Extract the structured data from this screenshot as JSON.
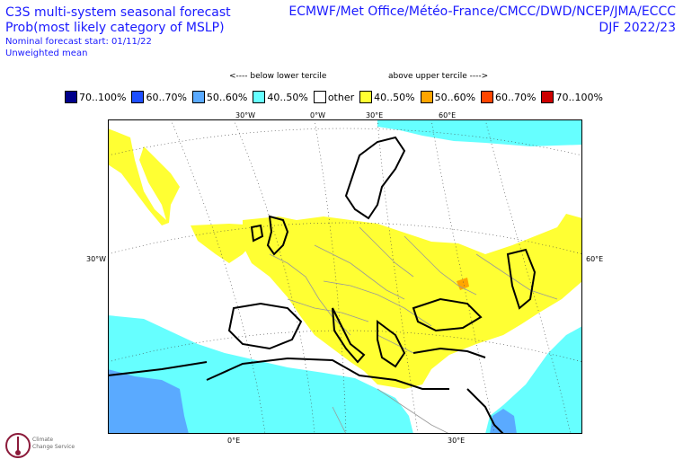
{
  "header": {
    "title": "C3S multi-system seasonal forecast",
    "subtitle": "Prob(most likely category of MSLP)",
    "start": "Nominal forecast start: 01/11/22",
    "mean": "Unweighted mean",
    "systems": "ECMWF/Met Office/Météo-France/CMCC/DWD/NCEP/JMA/ECCC",
    "period": "DJF 2022/23"
  },
  "tercile": {
    "below": "<---- below lower tercile",
    "above": "above upper tercile ---->"
  },
  "legend": [
    {
      "label": "70..100%",
      "color": "#00008b"
    },
    {
      "label": "60..70%",
      "color": "#1e4fff"
    },
    {
      "label": "50..60%",
      "color": "#5aaaff"
    },
    {
      "label": "40..50%",
      "color": "#66ffff"
    },
    {
      "label": "other",
      "color": "#ffffff"
    },
    {
      "label": "40..50%",
      "color": "#ffff33"
    },
    {
      "label": "50..60%",
      "color": "#ffa500"
    },
    {
      "label": "60..70%",
      "color": "#ff4500"
    },
    {
      "label": "70..100%",
      "color": "#cc0000"
    }
  ],
  "axes": {
    "top": [
      "30°W",
      "0°W",
      "30°E",
      "60°E"
    ],
    "left": "30°W",
    "right": "60°E",
    "bottom": [
      "0°E",
      "30°E"
    ]
  },
  "logo": {
    "line1": "Climate",
    "line2": "Change Service"
  }
}
